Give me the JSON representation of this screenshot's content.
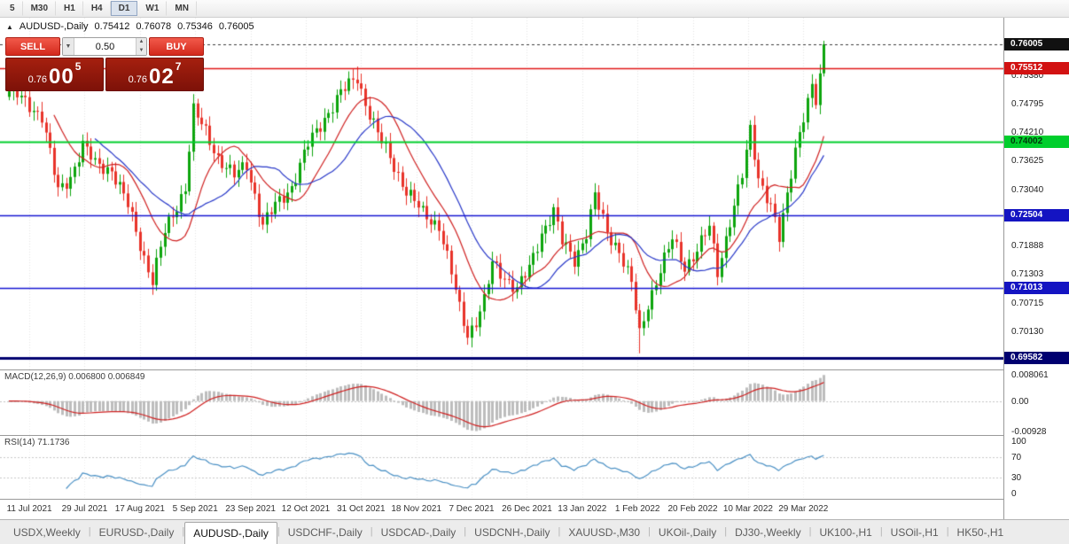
{
  "toolbar": {
    "timeframes": [
      {
        "label": "5"
      },
      {
        "label": "M30"
      },
      {
        "label": "H1"
      },
      {
        "label": "H4"
      },
      {
        "label": "D1"
      },
      {
        "label": "W1"
      },
      {
        "label": "MN"
      }
    ],
    "active": "D1"
  },
  "chart": {
    "header": {
      "icon": "▲",
      "title": "AUDUSD-,Daily",
      "open": "0.75412",
      "high": "0.76078",
      "low": "0.75346",
      "close": "0.76005"
    },
    "trade_panel": {
      "sell_label": "SELL",
      "buy_label": "BUY",
      "volume": "0.50",
      "sell_price": {
        "prefix": "0.76",
        "big": "00",
        "pip": "5"
      },
      "buy_price": {
        "prefix": "0.76",
        "big": "02",
        "pip": "7"
      }
    },
    "hlines": [
      {
        "price": 0.76005,
        "label": "0.76005",
        "color": "#3c3c3c",
        "badge_bg": "#111111",
        "badge_fg": "#ffffff",
        "dash": true,
        "lw": 1
      },
      {
        "price": 0.75512,
        "label": "0.75512",
        "color": "#e01616",
        "badge_bg": "#d21212",
        "badge_fg": "#ffffff",
        "dash": false,
        "lw": 1.5
      },
      {
        "price": 0.74002,
        "label": "0.74002",
        "color": "#00ce2c",
        "badge_bg": "#00ce2c",
        "badge_fg": "#00370b",
        "dash": false,
        "lw": 2
      },
      {
        "price": 0.72504,
        "label": "0.72504",
        "color": "#1515d2",
        "badge_bg": "#1414c2",
        "badge_fg": "#ffffff",
        "dash": false,
        "lw": 1.5
      },
      {
        "price": 0.71013,
        "label": "0.71013",
        "color": "#1515d2",
        "badge_bg": "#1414c2",
        "badge_fg": "#ffffff",
        "dash": false,
        "lw": 1.5
      },
      {
        "price": 0.69582,
        "label": "0.69582",
        "color": "#000070",
        "badge_bg": "#000070",
        "badge_fg": "#ffffff",
        "dash": false,
        "lw": 3
      }
    ],
    "price_ticks": [
      0.7538,
      0.74795,
      0.7421,
      0.73625,
      0.7304,
      0.71888,
      0.71303,
      0.70715,
      0.7013
    ],
    "date_labels": [
      "11 Jul 2021",
      "29 Jul 2021",
      "17 Aug 2021",
      "5 Sep 2021",
      "23 Sep 2021",
      "12 Oct 2021",
      "31 Oct 2021",
      "18 Nov 2021",
      "7 Dec 2021",
      "26 Dec 2021",
      "13 Jan 2022",
      "1 Feb 2022",
      "20 Feb 2022",
      "10 Mar 2022",
      "29 Mar 2022"
    ]
  },
  "indicators": {
    "macd": {
      "label": "MACD(12,26,9) 0.006800 0.006849",
      "fast": 12,
      "slow": 26,
      "signal": 9,
      "ylim": [
        -0.0105,
        0.0095
      ],
      "scale": [
        {
          "value": 0.008061,
          "label": "0.008061"
        },
        {
          "value": 0,
          "label": "0.00"
        },
        {
          "value": -0.00928,
          "label": "-0.00928"
        }
      ]
    },
    "rsi": {
      "label": "RSI(14) 71.1736",
      "period": 14,
      "levels": [
        70,
        30
      ],
      "scale": [
        {
          "value": 100,
          "label": "100"
        },
        {
          "value": 70,
          "label": "70"
        },
        {
          "value": 30,
          "label": "30"
        },
        {
          "value": 0,
          "label": "0"
        }
      ]
    }
  },
  "chart_data": {
    "type": "candlestick",
    "symbol": "AUDUSD-",
    "timeframe": "Daily",
    "bars": 200,
    "bar_spacing": 4.62,
    "x0": 10,
    "label_bar0": 5,
    "label_step": 13.5,
    "ylim": [
      0.6935,
      0.7655
    ],
    "last_bar": {
      "open": 0.75412,
      "high": 0.76078,
      "low": 0.75346,
      "close": 0.76005
    },
    "price_waypoints": [
      [
        0,
        0.7505
      ],
      [
        2,
        0.7495
      ],
      [
        8,
        0.7455
      ],
      [
        12,
        0.7298
      ],
      [
        15,
        0.733
      ],
      [
        18,
        0.7395
      ],
      [
        21,
        0.7355
      ],
      [
        25,
        0.7345
      ],
      [
        29,
        0.727
      ],
      [
        33,
        0.7165
      ],
      [
        35,
        0.7118
      ],
      [
        38,
        0.7215
      ],
      [
        41,
        0.727
      ],
      [
        43,
        0.731
      ],
      [
        45,
        0.7465
      ],
      [
        48,
        0.742
      ],
      [
        51,
        0.737
      ],
      [
        55,
        0.733
      ],
      [
        58,
        0.7355
      ],
      [
        62,
        0.723
      ],
      [
        65,
        0.727
      ],
      [
        69,
        0.731
      ],
      [
        73,
        0.7395
      ],
      [
        77,
        0.745
      ],
      [
        81,
        0.75
      ],
      [
        85,
        0.7535
      ],
      [
        87,
        0.748
      ],
      [
        90,
        0.7415
      ],
      [
        93,
        0.737
      ],
      [
        97,
        0.73
      ],
      [
        101,
        0.7255
      ],
      [
        105,
        0.723
      ],
      [
        108,
        0.713
      ],
      [
        110,
        0.706
      ],
      [
        112,
        0.7008
      ],
      [
        114,
        0.7035
      ],
      [
        116,
        0.7075
      ],
      [
        118,
        0.715
      ],
      [
        121,
        0.7125
      ],
      [
        124,
        0.71
      ],
      [
        127,
        0.714
      ],
      [
        130,
        0.7215
      ],
      [
        133,
        0.726
      ],
      [
        135,
        0.7195
      ],
      [
        138,
        0.716
      ],
      [
        141,
        0.7215
      ],
      [
        143,
        0.729
      ],
      [
        146,
        0.7215
      ],
      [
        149,
        0.718
      ],
      [
        152,
        0.711
      ],
      [
        154,
        0.7005
      ],
      [
        156,
        0.707
      ],
      [
        159,
        0.714
      ],
      [
        162,
        0.72
      ],
      [
        165,
        0.7145
      ],
      [
        168,
        0.718
      ],
      [
        171,
        0.7225
      ],
      [
        173,
        0.7135
      ],
      [
        176,
        0.724
      ],
      [
        179,
        0.733
      ],
      [
        181,
        0.7425
      ],
      [
        183,
        0.733
      ],
      [
        186,
        0.727
      ],
      [
        188,
        0.72
      ],
      [
        190,
        0.729
      ],
      [
        192,
        0.739
      ],
      [
        194,
        0.7455
      ],
      [
        196,
        0.751
      ],
      [
        197,
        0.748
      ],
      [
        198,
        0.7541
      ],
      [
        199,
        0.76005
      ]
    ],
    "spike_lows": {
      "35": 0.7106,
      "112": 0.6993,
      "154": 0.6968
    },
    "spike_highs": {
      "45": 0.7478,
      "85": 0.7555,
      "143": 0.7314,
      "181": 0.7441
    },
    "ma_fast_period": 12,
    "ma_slow_period": 22,
    "colors": {
      "up": "#0da50d",
      "down": "#e8332a",
      "ma_fast": "#cf2020",
      "ma_slow": "#2737c8",
      "macd_hist": "#bdbdbd",
      "macd_signal": "#cf2020",
      "rsi_line": "#4a90c4",
      "grid": "#e4e4e4"
    }
  },
  "tabs": {
    "active_index": 2,
    "items": [
      {
        "label": "USDX,Weekly"
      },
      {
        "label": "EURUSD-,Daily"
      },
      {
        "label": "AUDUSD-,Daily"
      },
      {
        "label": "USDCHF-,Daily"
      },
      {
        "label": "USDCAD-,Daily"
      },
      {
        "label": "USDCNH-,Daily"
      },
      {
        "label": "XAUUSD-,M30"
      },
      {
        "label": "UKOil-,Daily"
      },
      {
        "label": "DJ30-,Weekly"
      },
      {
        "label": "UK100-,H1"
      },
      {
        "label": "USOil-,H1"
      },
      {
        "label": "HK50-,H1"
      }
    ]
  }
}
